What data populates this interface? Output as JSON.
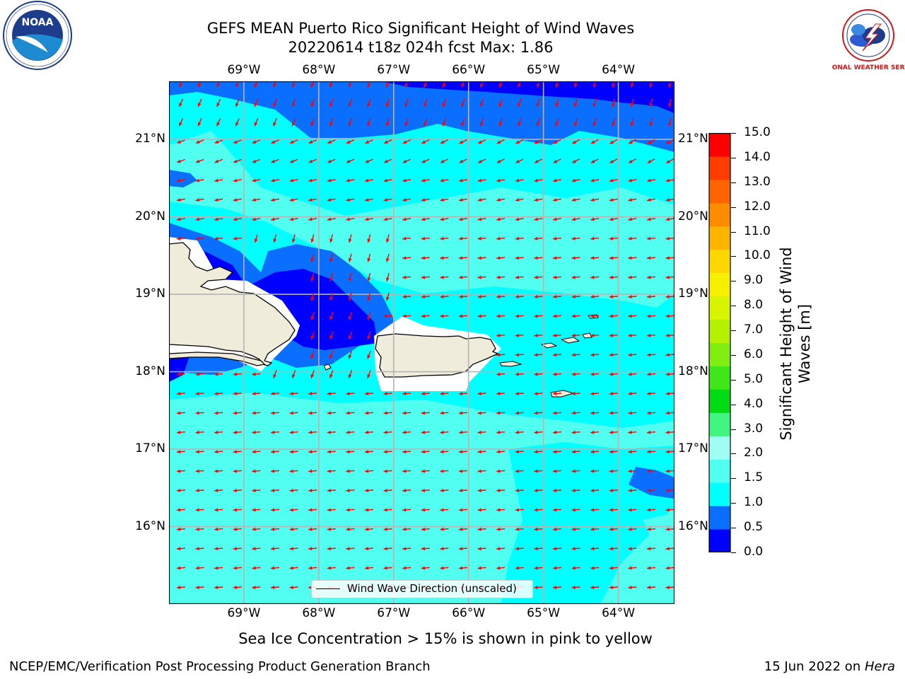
{
  "header": {
    "title_line1": "GEFS MEAN Puerto Rico Significant Height of Wind Waves",
    "title_line2": "20220614 t18z 024h fcst   Max: 1.86",
    "left_logo": "NOAA",
    "right_logo_text": "NATIONAL WEATHER SERVICE"
  },
  "map": {
    "lon_labels": [
      "69°W",
      "68°W",
      "67°W",
      "66°W",
      "65°W",
      "64°W"
    ],
    "lat_labels": [
      "21°N",
      "20°N",
      "19°N",
      "18°N",
      "17°N",
      "16°N"
    ],
    "lon_range": [
      -70,
      -63.25
    ],
    "lat_range": [
      15,
      21.75
    ],
    "legend_label": "Wind Wave Direction (unscaled)",
    "arrow_color": "#ff0000",
    "land_color": "#efecdc"
  },
  "colorbar": {
    "label": "Significant Height of Wind Waves [m]",
    "label_line1": "Significant Height of Wind",
    "label_line2": "Waves [m]",
    "ticks": [
      "15.0",
      "14.0",
      "13.0",
      "12.0",
      "11.0",
      "10.0",
      "9.0",
      "8.0",
      "7.0",
      "6.0",
      "5.0",
      "4.0",
      "3.0",
      "2.0",
      "1.5",
      "1.0",
      "0.5",
      "0.0"
    ],
    "colors_bottom_to_top": [
      "#0000ff",
      "#0a6eff",
      "#00ffff",
      "#50fff0",
      "#a0fff5",
      "#40f580",
      "#00dc14",
      "#3ee61a",
      "#80ee10",
      "#b4f000",
      "#d8f400",
      "#f6f000",
      "#ffd700",
      "#ffb400",
      "#ff8c00",
      "#ff6400",
      "#ff3c00",
      "#ff0000"
    ]
  },
  "footer": {
    "note": "Sea Ice Concentration > 15% is shown in pink to yellow",
    "left": "NCEP/EMC/Verification Post Processing Product Generation Branch",
    "right_prefix": "15 Jun 2022 on ",
    "right_host": "Hera"
  }
}
